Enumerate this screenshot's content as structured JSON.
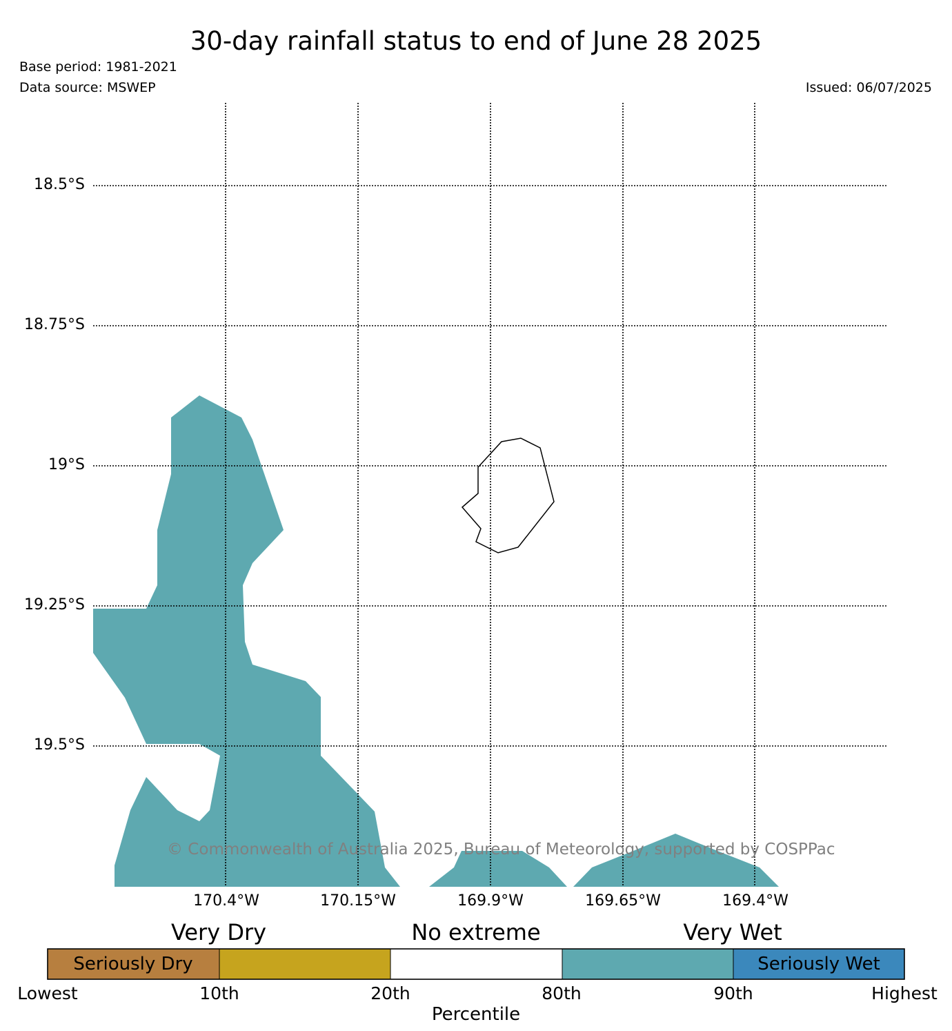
{
  "header": {
    "title": "30-day rainfall status to end of June 28 2025",
    "base_period": "Base period: 1981-2021",
    "data_source": "Data source: MSWEP",
    "issued": "Issued: 06/07/2025"
  },
  "map": {
    "latitude_labels": [
      "18.5°S",
      "18.75°S",
      "19°S",
      "19.25°S",
      "19.5°S"
    ],
    "longitude_labels": [
      "170.4°W",
      "170.15°W",
      "169.9°W",
      "169.65°W",
      "169.4°W"
    ],
    "gridlines": "dotted",
    "copyright": "© Commonwealth of Australia 2025, Bureau of Meteorology, supported by COSPPac",
    "wet_region_color": "#5ea9b0",
    "coastline_color": "#000000"
  },
  "legend": {
    "category_titles": [
      "Very Dry",
      "No extreme",
      "Very Wet"
    ],
    "segments": [
      {
        "label": "Seriously Dry",
        "color": "#b77f3f"
      },
      {
        "label": "",
        "color": "#c6a41e"
      },
      {
        "label": "",
        "color": "#ffffff"
      },
      {
        "label": "",
        "color": "#5ea9b0"
      },
      {
        "label": "Seriously Wet",
        "color": "#3b88bc"
      }
    ],
    "tick_labels": [
      "Lowest",
      "10th",
      "20th",
      "80th",
      "90th",
      "Highest"
    ],
    "axis_label": "Percentile"
  }
}
